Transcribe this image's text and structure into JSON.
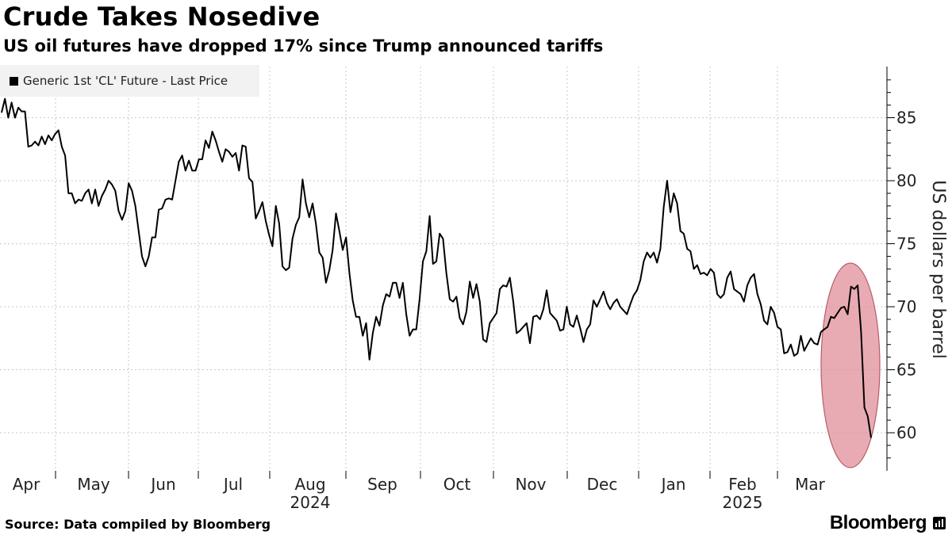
{
  "header": {
    "title": "Crude Takes Nosedive",
    "subtitle": "US oil futures have dropped 17% since Trump announced tariffs"
  },
  "legend": {
    "label": "Generic 1st 'CL' Future - Last Price",
    "swatch_color": "#000000"
  },
  "footer": {
    "source": "Source: Data compiled by Bloomberg",
    "brand": "Bloomberg"
  },
  "colors": {
    "line": "#000000",
    "grid": "#c8c8c8",
    "highlight_fill": "#e08a95",
    "highlight_stroke": "#b85c68"
  },
  "chart_data": {
    "type": "line",
    "series": [
      {
        "name": "Generic 1st 'CL' Future - Last Price",
        "y": [
          85.4,
          86.5,
          85.0,
          86.2,
          85.0,
          85.8,
          85.5,
          85.5,
          82.7,
          82.8,
          83.1,
          82.8,
          83.5,
          82.9,
          83.6,
          83.2,
          83.7,
          84.0,
          82.7,
          82.0,
          79.0,
          79.0,
          78.2,
          78.5,
          78.4,
          79.0,
          79.3,
          78.2,
          79.3,
          78.0,
          78.8,
          79.3,
          80.0,
          79.7,
          79.2,
          77.6,
          76.9,
          77.6,
          79.8,
          79.2,
          78.0,
          76.0,
          74.0,
          73.2,
          74.0,
          75.5,
          75.5,
          77.7,
          77.8,
          78.5,
          78.6,
          78.5,
          80.0,
          81.5,
          82.0,
          80.8,
          81.6,
          80.8,
          80.8,
          81.7,
          81.7,
          83.2,
          82.6,
          83.9,
          83.2,
          82.3,
          81.5,
          82.5,
          82.3,
          81.9,
          82.2,
          80.8,
          82.8,
          82.7,
          80.2,
          79.9,
          77.0,
          77.6,
          78.3,
          76.8,
          75.7,
          74.8,
          78.0,
          76.6,
          73.2,
          72.9,
          73.1,
          75.4,
          76.5,
          77.1,
          80.1,
          78.2,
          77.1,
          78.2,
          76.6,
          74.3,
          73.9,
          71.9,
          72.9,
          74.5,
          77.4,
          76.0,
          74.5,
          75.5,
          72.7,
          70.5,
          69.2,
          69.2,
          67.7,
          68.7,
          65.8,
          67.9,
          69.2,
          68.5,
          70.1,
          71.0,
          70.8,
          71.9,
          71.9,
          70.7,
          71.9,
          69.4,
          67.7,
          68.2,
          68.2,
          70.6,
          73.6,
          74.4,
          77.2,
          73.4,
          73.6,
          75.8,
          75.4,
          72.7,
          70.6,
          70.4,
          70.8,
          69.1,
          68.6,
          69.6,
          72.0,
          70.7,
          71.8,
          70.4,
          67.4,
          67.2,
          68.7,
          69.1,
          69.5,
          71.4,
          71.7,
          71.6,
          72.3,
          70.4,
          67.9,
          68.1,
          68.4,
          68.7,
          67.1,
          69.2,
          69.3,
          69.0,
          69.8,
          71.3,
          69.5,
          69.2,
          68.9,
          68.1,
          68.2,
          70.0,
          68.6,
          68.4,
          69.3,
          68.3,
          67.2,
          68.2,
          68.6,
          70.5,
          70.0,
          70.6,
          71.2,
          70.3,
          69.8,
          70.3,
          70.6,
          70.0,
          69.7,
          69.4,
          70.2,
          70.9,
          71.3,
          72.1,
          73.6,
          74.3,
          73.9,
          74.3,
          73.5,
          74.6,
          77.9,
          80.0,
          77.5,
          79.0,
          78.2,
          76.0,
          75.8,
          74.6,
          74.4,
          73.0,
          73.3,
          72.6,
          72.7,
          72.5,
          73.0,
          72.7,
          71.0,
          70.7,
          71.0,
          72.3,
          72.8,
          71.4,
          71.2,
          71.0,
          70.4,
          71.7,
          72.3,
          72.6,
          71.0,
          70.2,
          68.9,
          68.6,
          70.0,
          69.5,
          68.4,
          68.2,
          66.3,
          66.4,
          67.0,
          66.1,
          66.3,
          67.7,
          66.5,
          67.0,
          67.5,
          67.1,
          67.0,
          68.0,
          68.2,
          68.4,
          69.2,
          69.1,
          69.5,
          69.9,
          70.0,
          69.4,
          71.6,
          71.4,
          71.7,
          68.0,
          62.0,
          61.3,
          59.6
        ]
      }
    ],
    "x_month_labels": [
      "Apr",
      "May",
      "Jun",
      "Jul",
      "Aug",
      "Sep",
      "Oct",
      "Nov",
      "Dec",
      "Jan",
      "Feb",
      "Mar"
    ],
    "x_year_labels": [
      {
        "label": "2024",
        "under": "Aug"
      },
      {
        "label": "2025",
        "under": "Feb"
      }
    ],
    "y_ticks": [
      60,
      65,
      70,
      75,
      80,
      85
    ],
    "ylim": [
      57,
      89
    ],
    "ylabel": "US dollars per barrel",
    "grid": true,
    "legend_position": "top-left",
    "annotation": {
      "type": "ellipse-highlight",
      "around": "final decline after tariffs announcement"
    }
  }
}
